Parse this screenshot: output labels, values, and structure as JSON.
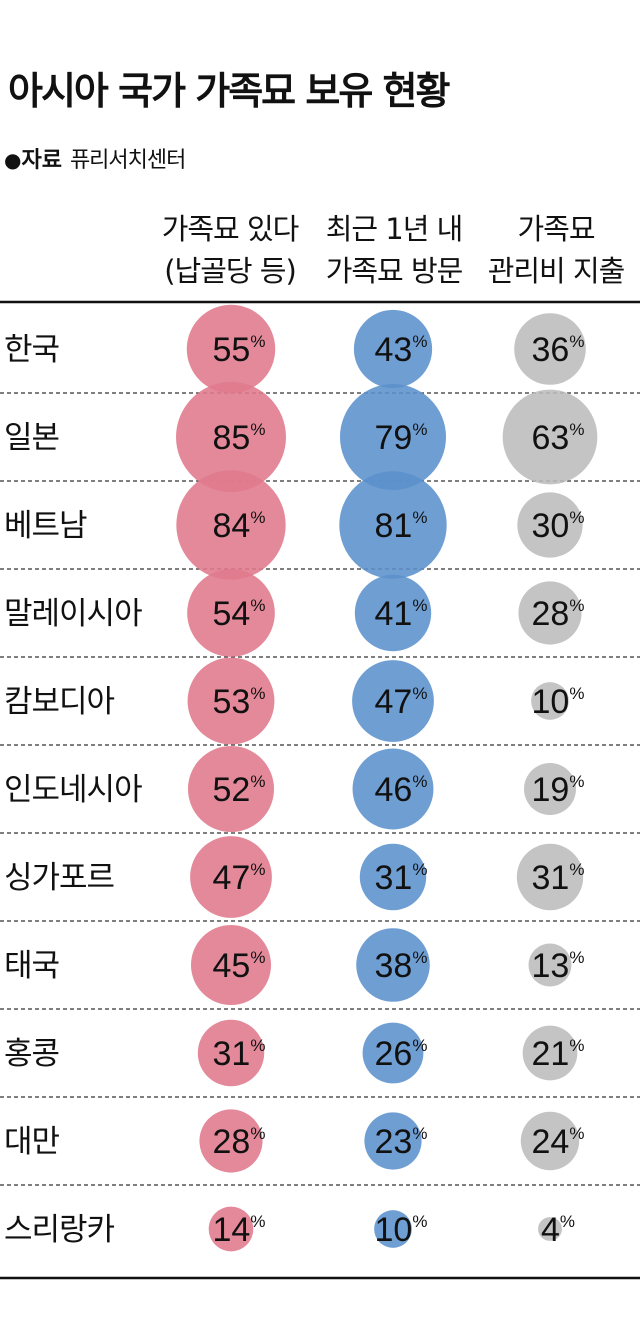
{
  "title": "아시아 국가 가족묘 보유 현황",
  "source": {
    "label": "자료",
    "value": "퓨리서치센터"
  },
  "columns": [
    {
      "line1": "가족묘 있다",
      "line2": "(납골당 등)"
    },
    {
      "line1": "최근 1년 내",
      "line2": "가족묘 방문"
    },
    {
      "line1": "가족묘",
      "line2": "관리비 지출"
    }
  ],
  "colors": {
    "series1": "#e0798c",
    "series2": "#5b91cc",
    "series3": "#bcbcbc",
    "rule": "#111111"
  },
  "chart_data": {
    "type": "table",
    "unit": "%",
    "categories": [
      "한국",
      "일본",
      "베트남",
      "말레이시아",
      "캄보디아",
      "인도네시아",
      "싱가포르",
      "태국",
      "홍콩",
      "대만",
      "스리랑카"
    ],
    "series": [
      {
        "values": [
          55,
          85,
          84,
          54,
          53,
          52,
          47,
          45,
          31,
          28,
          14
        ]
      },
      {
        "values": [
          43,
          79,
          81,
          41,
          47,
          46,
          31,
          38,
          26,
          23,
          10
        ]
      },
      {
        "values": [
          36,
          63,
          30,
          28,
          10,
          19,
          31,
          13,
          21,
          24,
          4
        ]
      }
    ]
  }
}
